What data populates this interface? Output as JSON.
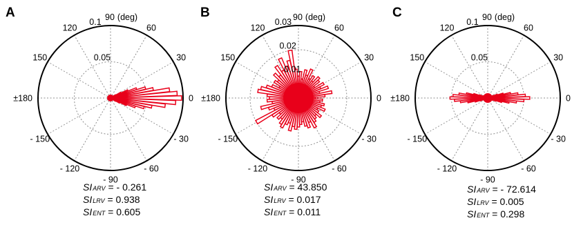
{
  "chart_data": [
    {
      "type": "polar-histogram",
      "panel": "A",
      "angle_unit_label": "(deg)",
      "angle_ticks": [
        "0",
        "30",
        "60",
        "90",
        "120",
        "150",
        "±180",
        "- 150",
        "- 120",
        "- 90",
        "- 60",
        "- 30"
      ],
      "r_ticks": [
        0.05,
        0.1
      ],
      "r_tick_labels": [
        "0.05",
        "0.1"
      ],
      "rmax": 0.1,
      "grid": true,
      "bar_color": "#e8001a",
      "bins": [
        {
          "angle": 0,
          "value": 0.098
        },
        {
          "angle": 4,
          "value": 0.092
        },
        {
          "angle": -4,
          "value": 0.09
        },
        {
          "angle": 8,
          "value": 0.082
        },
        {
          "angle": -8,
          "value": 0.076
        },
        {
          "angle": 12,
          "value": 0.06
        },
        {
          "angle": -12,
          "value": 0.058
        },
        {
          "angle": 16,
          "value": 0.05
        },
        {
          "angle": -16,
          "value": 0.048
        },
        {
          "angle": 20,
          "value": 0.038
        },
        {
          "angle": -20,
          "value": 0.036
        },
        {
          "angle": 24,
          "value": 0.026
        },
        {
          "angle": -24,
          "value": 0.024
        },
        {
          "angle": 28,
          "value": 0.016
        },
        {
          "angle": -28,
          "value": 0.014
        },
        {
          "angle": 32,
          "value": 0.008
        },
        {
          "angle": -32,
          "value": 0.008
        },
        {
          "angle": 36,
          "value": 0.005
        },
        {
          "angle": -36,
          "value": 0.004
        },
        {
          "angle": 180,
          "value": 0.004
        },
        {
          "angle": 170,
          "value": 0.003
        },
        {
          "angle": -170,
          "value": 0.003
        }
      ],
      "stats": [
        {
          "si": "SI",
          "sub": "ARV",
          "text": " = - 0.261"
        },
        {
          "si": "SI",
          "sub": "LRV",
          "text": " = 0.938"
        },
        {
          "si": "SI",
          "sub": "ENT",
          "text": " = 0.605"
        }
      ]
    },
    {
      "type": "polar-histogram",
      "panel": "B",
      "angle_unit_label": "(deg)",
      "angle_ticks": [
        "0",
        "30",
        "60",
        "90",
        "120",
        "150",
        "±180",
        "- 150",
        "- 120",
        "- 90",
        "- 60",
        "- 30"
      ],
      "r_ticks": [
        0.01,
        0.02,
        0.03
      ],
      "r_tick_labels": [
        "0.01",
        "0.02",
        "0.03"
      ],
      "rmax": 0.03,
      "grid": true,
      "bar_color": "#e8001a",
      "bins": [
        {
          "angle": 0,
          "value": 0.007
        },
        {
          "angle": 5,
          "value": 0.011
        },
        {
          "angle": 10,
          "value": 0.014
        },
        {
          "angle": 15,
          "value": 0.009
        },
        {
          "angle": 20,
          "value": 0.013
        },
        {
          "angle": 25,
          "value": 0.01
        },
        {
          "angle": 30,
          "value": 0.012
        },
        {
          "angle": 35,
          "value": 0.008
        },
        {
          "angle": 40,
          "value": 0.011
        },
        {
          "angle": 45,
          "value": 0.012
        },
        {
          "angle": 50,
          "value": 0.009
        },
        {
          "angle": 55,
          "value": 0.011
        },
        {
          "angle": 60,
          "value": 0.009
        },
        {
          "angle": 65,
          "value": 0.013
        },
        {
          "angle": 70,
          "value": 0.01
        },
        {
          "angle": 75,
          "value": 0.012
        },
        {
          "angle": 80,
          "value": 0.008
        },
        {
          "angle": 85,
          "value": 0.011
        },
        {
          "angle": 90,
          "value": 0.009
        },
        {
          "angle": 95,
          "value": 0.012
        },
        {
          "angle": 100,
          "value": 0.02
        },
        {
          "angle": 105,
          "value": 0.016
        },
        {
          "angle": 110,
          "value": 0.014
        },
        {
          "angle": 115,
          "value": 0.018
        },
        {
          "angle": 120,
          "value": 0.013
        },
        {
          "angle": 125,
          "value": 0.016
        },
        {
          "angle": 130,
          "value": 0.012
        },
        {
          "angle": 135,
          "value": 0.014
        },
        {
          "angle": 140,
          "value": 0.011
        },
        {
          "angle": 145,
          "value": 0.012
        },
        {
          "angle": 150,
          "value": 0.009
        },
        {
          "angle": 155,
          "value": 0.012
        },
        {
          "angle": 160,
          "value": 0.014
        },
        {
          "angle": 165,
          "value": 0.016
        },
        {
          "angle": 170,
          "value": 0.017
        },
        {
          "angle": 175,
          "value": 0.013
        },
        {
          "angle": 180,
          "value": 0.012
        },
        {
          "angle": -175,
          "value": 0.013
        },
        {
          "angle": -170,
          "value": 0.011
        },
        {
          "angle": -165,
          "value": 0.016
        },
        {
          "angle": -160,
          "value": 0.013
        },
        {
          "angle": -155,
          "value": 0.011
        },
        {
          "angle": -150,
          "value": 0.02
        },
        {
          "angle": -145,
          "value": 0.013
        },
        {
          "angle": -140,
          "value": 0.01
        },
        {
          "angle": -135,
          "value": 0.012
        },
        {
          "angle": -130,
          "value": 0.011
        },
        {
          "angle": -125,
          "value": 0.013
        },
        {
          "angle": -120,
          "value": 0.014
        },
        {
          "angle": -115,
          "value": 0.012
        },
        {
          "angle": -110,
          "value": 0.011
        },
        {
          "angle": -105,
          "value": 0.014
        },
        {
          "angle": -100,
          "value": 0.012
        },
        {
          "angle": -95,
          "value": 0.013
        },
        {
          "angle": -90,
          "value": 0.012
        },
        {
          "angle": -85,
          "value": 0.011
        },
        {
          "angle": -80,
          "value": 0.01
        },
        {
          "angle": -75,
          "value": 0.012
        },
        {
          "angle": -70,
          "value": 0.013
        },
        {
          "angle": -65,
          "value": 0.011
        },
        {
          "angle": -60,
          "value": 0.014
        },
        {
          "angle": -55,
          "value": 0.012
        },
        {
          "angle": -50,
          "value": 0.011
        },
        {
          "angle": -45,
          "value": 0.01
        },
        {
          "angle": -40,
          "value": 0.012
        },
        {
          "angle": -35,
          "value": 0.01
        },
        {
          "angle": -30,
          "value": 0.009
        },
        {
          "angle": -25,
          "value": 0.012
        },
        {
          "angle": -20,
          "value": 0.01
        },
        {
          "angle": -15,
          "value": 0.011
        },
        {
          "angle": -10,
          "value": 0.009
        },
        {
          "angle": -5,
          "value": 0.01
        }
      ],
      "stats": [
        {
          "si": "SI",
          "sub": "ARV",
          "text": " = 43.850"
        },
        {
          "si": "SI",
          "sub": "LRV",
          "text": " = 0.017"
        },
        {
          "si": "SI",
          "sub": "ENT",
          "text": " = 0.011"
        }
      ]
    },
    {
      "type": "polar-histogram",
      "panel": "C",
      "angle_unit_label": "(deg)",
      "angle_ticks": [
        "0",
        "30",
        "60",
        "90",
        "120",
        "150",
        "±180",
        "- 150",
        "- 120",
        "- 90",
        "- 60",
        "- 30"
      ],
      "r_ticks": [
        0.05,
        0.1
      ],
      "r_tick_labels": [
        "0.05",
        "0.1"
      ],
      "rmax": 0.1,
      "grid": true,
      "bar_color": "#e8001a",
      "bins": [
        {
          "angle": 0,
          "value": 0.058
        },
        {
          "angle": 4,
          "value": 0.052
        },
        {
          "angle": -4,
          "value": 0.05
        },
        {
          "angle": 8,
          "value": 0.042
        },
        {
          "angle": -8,
          "value": 0.04
        },
        {
          "angle": 12,
          "value": 0.032
        },
        {
          "angle": -12,
          "value": 0.03
        },
        {
          "angle": 16,
          "value": 0.022
        },
        {
          "angle": -16,
          "value": 0.02
        },
        {
          "angle": 20,
          "value": 0.014
        },
        {
          "angle": -20,
          "value": 0.012
        },
        {
          "angle": 24,
          "value": 0.008
        },
        {
          "angle": -24,
          "value": 0.007
        },
        {
          "angle": 28,
          "value": 0.004
        },
        {
          "angle": -28,
          "value": 0.004
        },
        {
          "angle": 180,
          "value": 0.052
        },
        {
          "angle": 176,
          "value": 0.048
        },
        {
          "angle": -176,
          "value": 0.046
        },
        {
          "angle": 172,
          "value": 0.04
        },
        {
          "angle": -172,
          "value": 0.038
        },
        {
          "angle": 168,
          "value": 0.03
        },
        {
          "angle": -168,
          "value": 0.028
        },
        {
          "angle": 164,
          "value": 0.02
        },
        {
          "angle": -164,
          "value": 0.018
        },
        {
          "angle": 160,
          "value": 0.012
        },
        {
          "angle": -160,
          "value": 0.011
        },
        {
          "angle": 156,
          "value": 0.007
        },
        {
          "angle": -156,
          "value": 0.006
        },
        {
          "angle": 152,
          "value": 0.004
        },
        {
          "angle": -152,
          "value": 0.003
        }
      ],
      "stats": [
        {
          "si": "SI",
          "sub": "ARV",
          "text": " = - 72.614"
        },
        {
          "si": "SI",
          "sub": "LRV",
          "text": " = 0.005"
        },
        {
          "si": "SI",
          "sub": "ENT",
          "text": " = 0.298"
        }
      ]
    }
  ]
}
